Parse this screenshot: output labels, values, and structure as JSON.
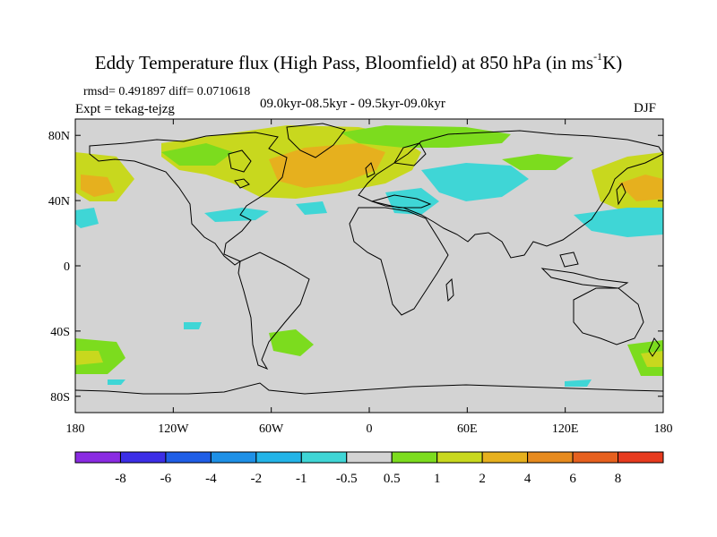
{
  "figure": {
    "title_prefix": "Eddy Temperature flux (High Pass, Bloomfield) at 850 hPa (in ms",
    "title_sup": "-1",
    "title_suffix": "K)",
    "stats": "rmsd= 0.491897 diff= 0.0710618",
    "expt": "Expt = tekag-tejzg",
    "period": "09.0kyr-08.5kyr - 09.5kyr-09.0kyr",
    "season": "DJF"
  },
  "map": {
    "projection": "cylindrical-equidistant",
    "lon_range": [
      -180,
      180
    ],
    "lat_range": [
      -90,
      90
    ],
    "lat_ticks": [
      {
        "lat": 80,
        "label": "80N"
      },
      {
        "lat": 40,
        "label": "40N"
      },
      {
        "lat": 0,
        "label": "0"
      },
      {
        "lat": -40,
        "label": "40S"
      },
      {
        "lat": -80,
        "label": "80S"
      }
    ],
    "lon_ticks": [
      {
        "lon": -180,
        "label": "180"
      },
      {
        "lon": -120,
        "label": "120W"
      },
      {
        "lon": -60,
        "label": "60W"
      },
      {
        "lon": 0,
        "label": "0"
      },
      {
        "lon": 60,
        "label": "60E"
      },
      {
        "lon": 120,
        "label": "120E"
      },
      {
        "lon": 180,
        "label": "180"
      }
    ],
    "background_color": "#d3d3d3",
    "coast_color": "#000000"
  },
  "colorbar": {
    "labels": [
      "-8",
      "-6",
      "-4",
      "-2",
      "-1",
      "-0.5",
      "0.5",
      "1",
      "2",
      "4",
      "6",
      "8"
    ],
    "colors": [
      "#8a2be2",
      "#3c2ee6",
      "#1f5ee6",
      "#1e90e6",
      "#23b4e8",
      "#3fd6d6",
      "#d3d3d3",
      "#7cdc1e",
      "#c8d81e",
      "#e6b01e",
      "#e68a1e",
      "#e6601e",
      "#e63a1e"
    ]
  },
  "chart_data": {
    "type": "heatmap",
    "field": "Eddy Temperature flux (High Pass, Bloomfield) at 850 hPa",
    "units": "ms-1K",
    "regions": [
      {
        "lon": [
          -60,
          0
        ],
        "lat": [
          40,
          65
        ],
        "level": "2-4"
      },
      {
        "lon": [
          -110,
          -60
        ],
        "lat": [
          50,
          62
        ],
        "level": "1-2"
      },
      {
        "lon": [
          0,
          40
        ],
        "lat": [
          65,
          80
        ],
        "level": "1-2"
      },
      {
        "lon": [
          140,
          170
        ],
        "lat": [
          35,
          55
        ],
        "level": "2-4"
      },
      {
        "lon": [
          -175,
          -160
        ],
        "lat": [
          40,
          55
        ],
        "level": "2-4"
      },
      {
        "lon": [
          30,
          90
        ],
        "lat": [
          40,
          60
        ],
        "level": "-1 to -0.5"
      },
      {
        "lon": [
          -100,
          -70
        ],
        "lat": [
          28,
          35
        ],
        "level": "-1 to -0.5"
      },
      {
        "lon": [
          120,
          180
        ],
        "lat": [
          20,
          35
        ],
        "level": "-1 to -0.5"
      },
      {
        "lon": [
          -180,
          -160
        ],
        "lat": [
          -65,
          -45
        ],
        "level": "1-2"
      },
      {
        "lon": [
          -60,
          -30
        ],
        "lat": [
          -50,
          -40
        ],
        "level": "0.5-1"
      },
      {
        "lon": [
          150,
          180
        ],
        "lat": [
          -60,
          -45
        ],
        "level": "0.5-1"
      }
    ]
  }
}
